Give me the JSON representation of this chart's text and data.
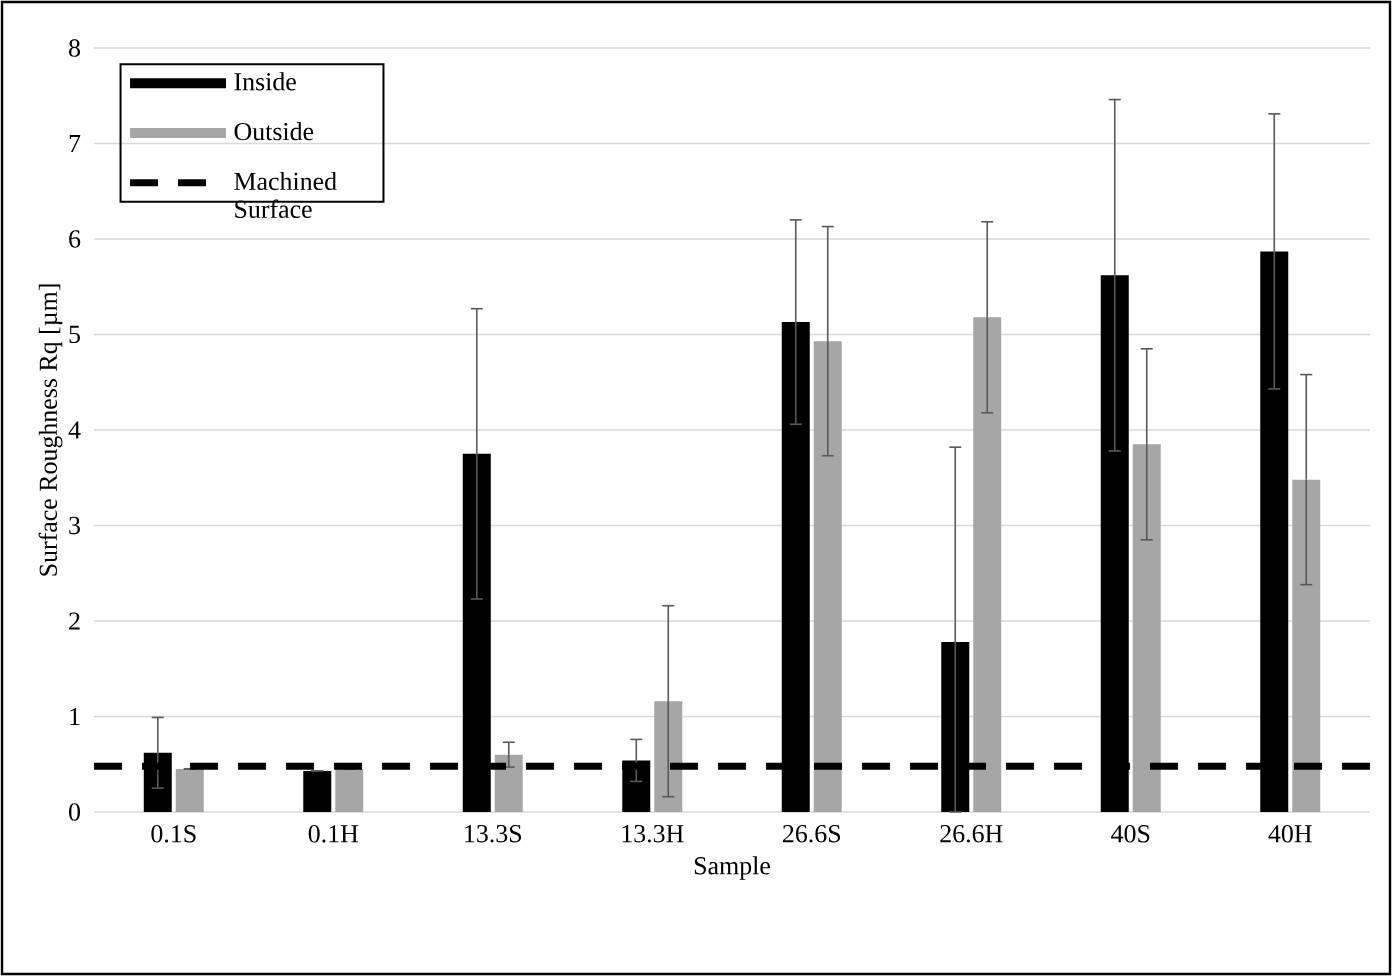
{
  "chart_data": {
    "type": "bar",
    "xlabel": "Sample",
    "ylabel": "Surface Roughness Rq [µm]",
    "categories": [
      "0.1S",
      "0.1H",
      "13.3S",
      "13.3H",
      "26.6S",
      "26.6H",
      "40S",
      "40H"
    ],
    "series": [
      {
        "name": "Inside",
        "color": "#000000",
        "values": [
          0.62,
          0.43,
          3.75,
          0.54,
          5.13,
          1.78,
          5.62,
          5.87
        ],
        "errors": [
          0.37,
          null,
          1.52,
          0.22,
          1.07,
          [
            0,
            3.82
          ],
          1.84,
          1.44
        ]
      },
      {
        "name": "Outside",
        "color": "#a6a6a6",
        "values": [
          0.45,
          0.45,
          0.6,
          1.16,
          4.93,
          5.18,
          3.85,
          3.48
        ],
        "errors": [
          null,
          null,
          0.13,
          1.0,
          1.2,
          1.0,
          1.0,
          1.1
        ]
      }
    ],
    "ref_lines": [
      {
        "axis": "y",
        "value": 0.48,
        "label": "Machined Surface",
        "color": "#000000",
        "line_style": "dashed"
      }
    ],
    "ylim": [
      0,
      8
    ],
    "yticks": [
      0,
      1,
      2,
      3,
      4,
      5,
      6,
      7,
      8
    ],
    "grid": "y",
    "legend": "top left"
  }
}
